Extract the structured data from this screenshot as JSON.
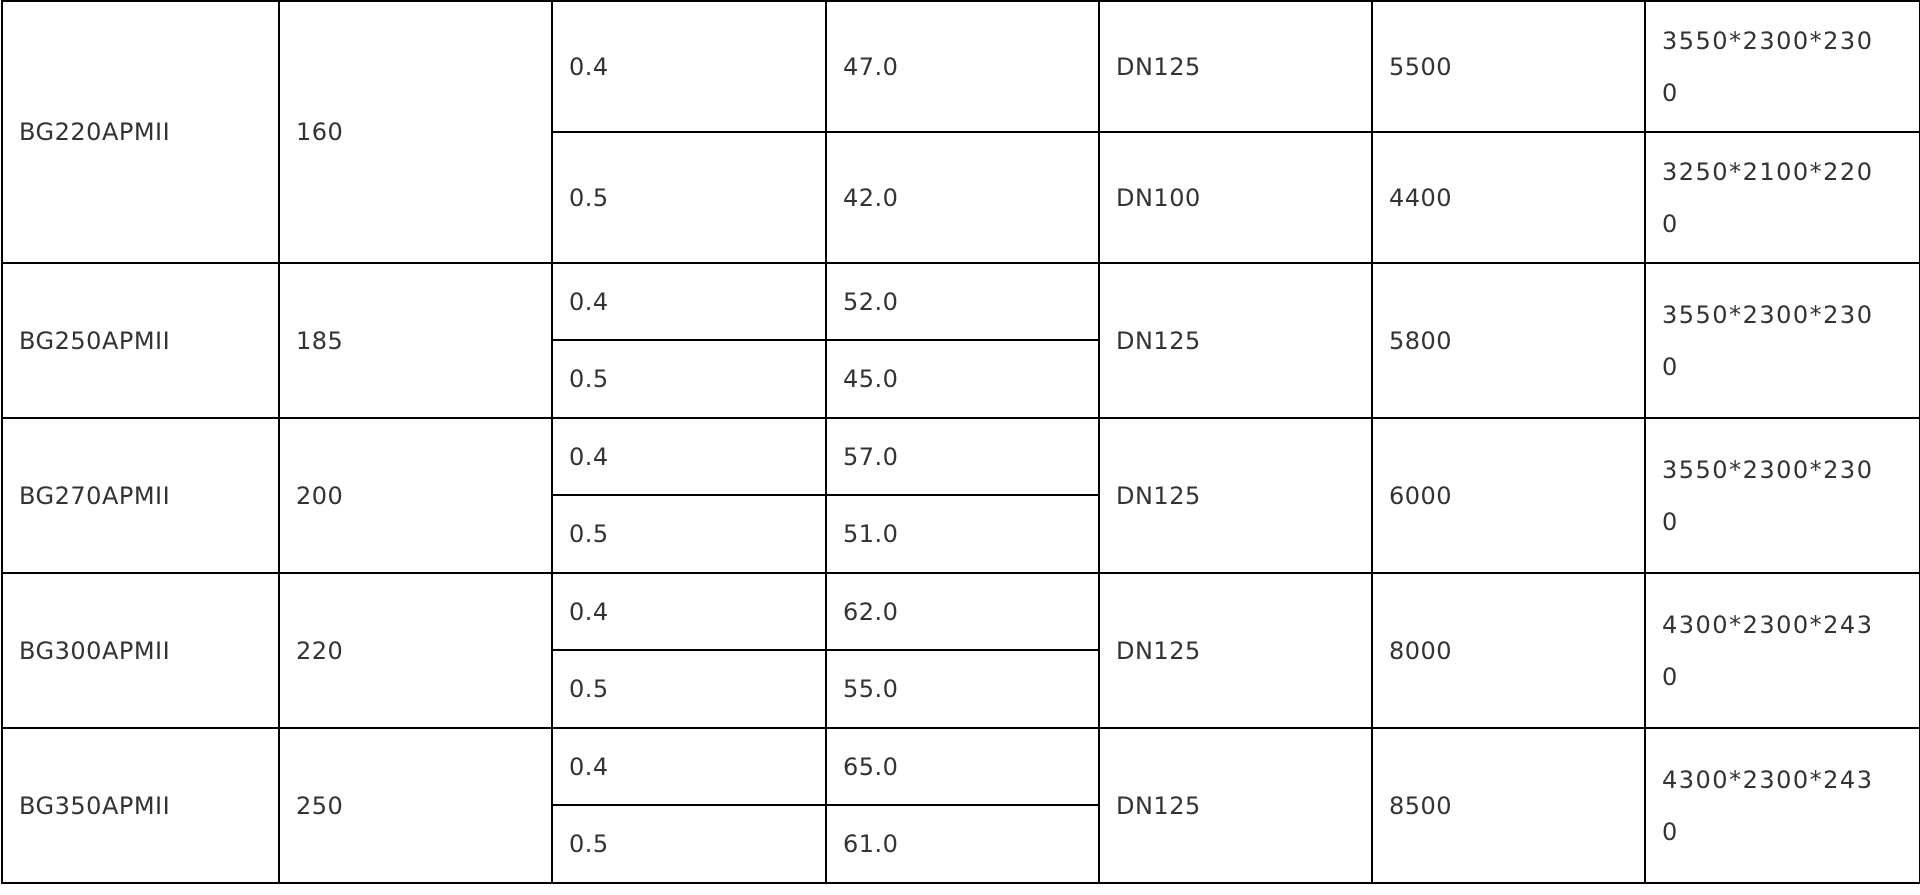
{
  "rows": [
    {
      "model": "BG220APMII",
      "power": "160",
      "sub": [
        {
          "pressure": "0.4",
          "flow": "47.0",
          "pipe": "DN125",
          "weight": "5500",
          "dims": "3550*2300*2300"
        },
        {
          "pressure": "0.5",
          "flow": "42.0",
          "pipe": "DN100",
          "weight": "4400",
          "dims": "3250*2100*2200"
        }
      ]
    },
    {
      "model": "BG250APMII",
      "power": "185",
      "sub": [
        {
          "pressure": "0.4",
          "flow": "52.0"
        },
        {
          "pressure": "0.5",
          "flow": "45.0"
        }
      ],
      "pipe": "DN125",
      "weight": "5800",
      "dims": "3550*2300*2300"
    },
    {
      "model": "BG270APMII",
      "power": "200",
      "sub": [
        {
          "pressure": "0.4",
          "flow": "57.0"
        },
        {
          "pressure": "0.5",
          "flow": "51.0"
        }
      ],
      "pipe": "DN125",
      "weight": "6000",
      "dims": "3550*2300*2300"
    },
    {
      "model": "BG300APMII",
      "power": "220",
      "sub": [
        {
          "pressure": "0.4",
          "flow": "62.0"
        },
        {
          "pressure": "0.5",
          "flow": "55.0"
        }
      ],
      "pipe": "DN125",
      "weight": "8000",
      "dims": "4300*2300*2430"
    },
    {
      "model": "BG350APMII",
      "power": "250",
      "sub": [
        {
          "pressure": "0.4",
          "flow": "65.0"
        },
        {
          "pressure": "0.5",
          "flow": "61.0"
        }
      ],
      "pipe": "DN125",
      "weight": "8500",
      "dims": "4300*2300*2430"
    }
  ]
}
